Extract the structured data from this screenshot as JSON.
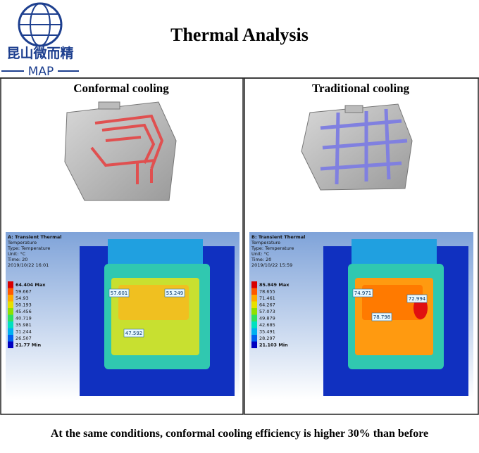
{
  "logo": {
    "name": "昆山微而精",
    "brand": "MAP"
  },
  "title": "Thermal Analysis",
  "panels": [
    {
      "heading": "Conformal cooling",
      "sim": {
        "header": [
          "A: Transient Thermal",
          "Temperature",
          "Type: Temperature",
          "Unit: °C",
          "Time: 20",
          "2019/10/22 16:01"
        ],
        "legend": [
          "64.404 Max",
          "59.667",
          "54.93",
          "50.193",
          "45.456",
          "40.719",
          "35.981",
          "31.244",
          "26.507",
          "21.77 Min"
        ],
        "probes": [
          "57.601",
          "55.249",
          "47.592"
        ]
      }
    },
    {
      "heading": "Traditional cooling",
      "sim": {
        "header": [
          "B: Transient Thermal",
          "Temperature",
          "Type: Temperature",
          "Unit: °C",
          "Time: 20",
          "2019/10/22 15:59"
        ],
        "legend": [
          "85.849 Max",
          "78.655",
          "71.461",
          "64.267",
          "57.073",
          "49.879",
          "42.685",
          "35.491",
          "28.297",
          "21.103 Min"
        ],
        "probes": [
          "74.971",
          "72.994",
          "78.798"
        ]
      }
    }
  ],
  "footer": "At the same conditions, conformal cooling efficiency is higher 30% than before"
}
